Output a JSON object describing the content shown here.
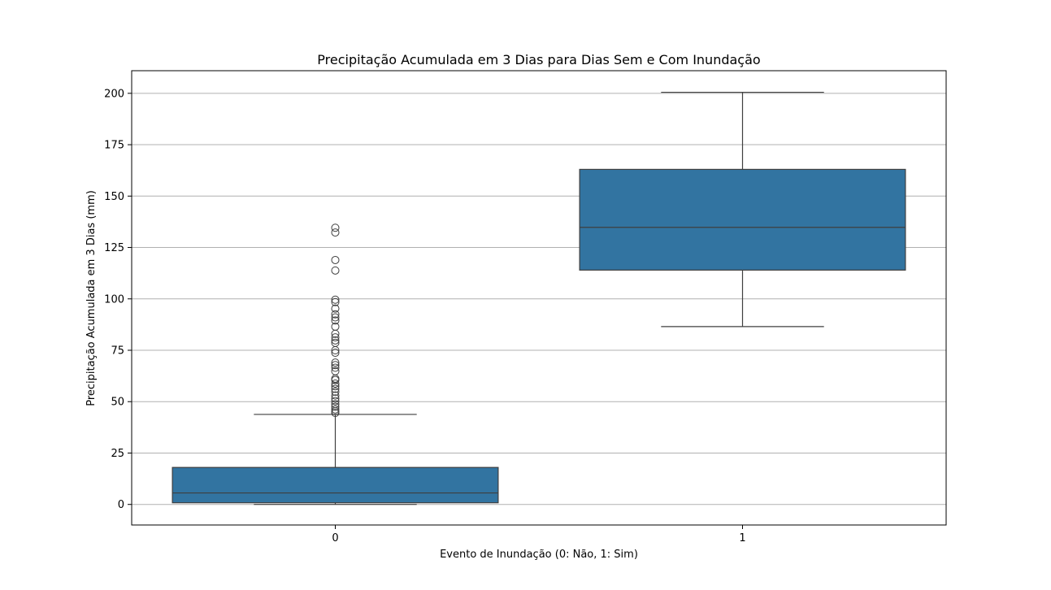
{
  "chart_data": {
    "type": "box",
    "title": "Precipitação Acumulada em 3 Dias para Dias Sem e Com Inundação",
    "xlabel": "Evento de Inundação (0: Não, 1: Sim)",
    "ylabel": "Precipitação Acumulada em 3 Dias (mm)",
    "categories": [
      "0",
      "1"
    ],
    "ylim": [
      -10,
      211
    ],
    "yticks": [
      0,
      25,
      50,
      75,
      100,
      125,
      150,
      175,
      200
    ],
    "grid": "horizontal",
    "box_color": "#3274a1",
    "boxes": [
      {
        "category": "0",
        "whisker_low": 0,
        "q1": 0.8,
        "median": 5.6,
        "q3": 18.0,
        "whisker_high": 43.8,
        "outliers": [
          44.5,
          45.3,
          46.2,
          47.5,
          48.8,
          50.3,
          51.6,
          53.0,
          54.8,
          56.2,
          57.5,
          58.8,
          60.5,
          61.2,
          64.8,
          66.5,
          67.8,
          69.0,
          73.8,
          75.0,
          78.6,
          79.8,
          81.3,
          83.0,
          86.5,
          89.5,
          91.0,
          92.5,
          95.3,
          98.4,
          99.6,
          113.8,
          118.9,
          132.3,
          134.6
        ]
      },
      {
        "category": "1",
        "whisker_low": 86.5,
        "q1": 114.0,
        "median": 134.8,
        "q3": 163.0,
        "whisker_high": 200.5,
        "outliers": []
      }
    ]
  }
}
